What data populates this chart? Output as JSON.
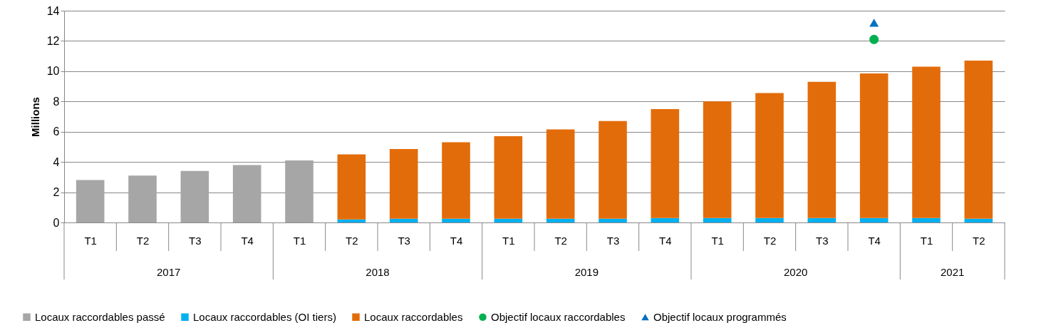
{
  "chart_data": {
    "type": "bar",
    "stacked": true,
    "ylabel": "Millions",
    "categories": [
      "T1",
      "T2",
      "T3",
      "T4",
      "T1",
      "T2",
      "T3",
      "T4",
      "T1",
      "T2",
      "T3",
      "T4",
      "T1",
      "T2",
      "T3",
      "T4",
      "T1",
      "T2"
    ],
    "series": [
      {
        "name": "Locaux raccordables passé",
        "color": "#a6a6a6",
        "values": [
          2.8,
          3.1,
          3.4,
          3.8,
          4.1,
          null,
          null,
          null,
          null,
          null,
          null,
          null,
          null,
          null,
          null,
          null,
          null,
          null
        ]
      },
      {
        "name": "Locaux raccordables (OI tiers)",
        "color": "#00b0f0",
        "values": [
          null,
          null,
          null,
          null,
          null,
          0.2,
          0.25,
          0.25,
          0.25,
          0.25,
          0.25,
          0.3,
          0.3,
          0.3,
          0.3,
          0.3,
          0.3,
          0.25
        ]
      },
      {
        "name": "Locaux raccordables",
        "color": "#e36c0a",
        "values": [
          null,
          null,
          null,
          null,
          null,
          4.3,
          4.6,
          5.05,
          5.45,
          5.9,
          6.45,
          7.2,
          7.7,
          8.25,
          9.0,
          9.55,
          10.0,
          10.45
        ]
      },
      {
        "name": "Objectif locaux raccordables",
        "type": "scatter",
        "marker": "circle",
        "color": "#00b050",
        "values": [
          null,
          null,
          null,
          null,
          null,
          null,
          null,
          null,
          null,
          null,
          null,
          null,
          null,
          null,
          null,
          12.1,
          null,
          null
        ]
      },
      {
        "name": "Objectif locaux programmés",
        "type": "scatter",
        "marker": "triangle",
        "color": "#0070c0",
        "values": [
          null,
          null,
          null,
          null,
          null,
          null,
          null,
          null,
          null,
          null,
          null,
          null,
          null,
          null,
          null,
          13.2,
          null,
          null
        ]
      }
    ],
    "ylim": [
      0,
      14
    ],
    "yticks": [
      0,
      2,
      4,
      6,
      8,
      10,
      12,
      14
    ],
    "grid": "y",
    "legend": "bottom",
    "annotations": [
      "2017",
      "2018",
      "2019",
      "2020",
      "2021"
    ]
  }
}
